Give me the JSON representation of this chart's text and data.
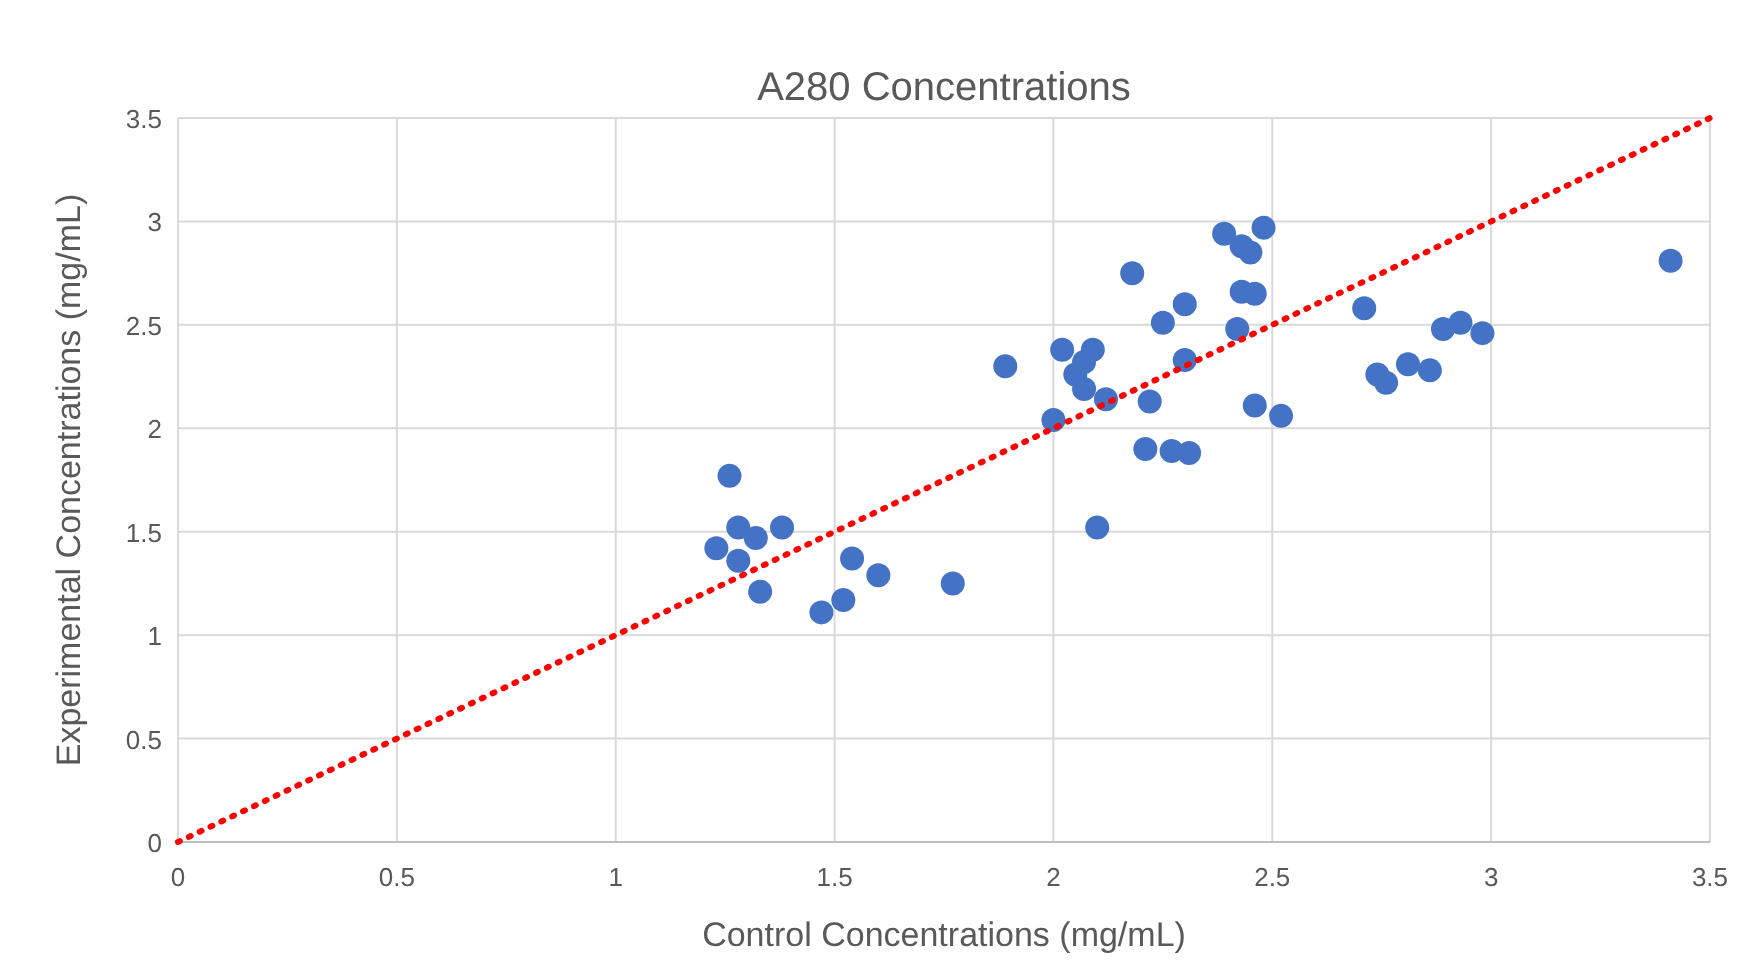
{
  "chart_data": {
    "type": "scatter",
    "title": "A280 Concentrations",
    "xlabel": "Control Concentrations (mg/mL)",
    "ylabel": "Experimental Concentrations (mg/mL)",
    "xlim": [
      0,
      3.5
    ],
    "ylim": [
      0,
      3.5
    ],
    "xticks": [
      0,
      0.5,
      1,
      1.5,
      2,
      2.5,
      3,
      3.5
    ],
    "yticks": [
      0,
      0.5,
      1,
      1.5,
      2,
      2.5,
      3,
      3.5
    ],
    "grid": true,
    "series": [
      {
        "color": "#4472c4",
        "marker": "circle",
        "x": [
          1.26,
          1.28,
          1.32,
          1.38,
          1.23,
          1.28,
          1.33,
          1.54,
          1.6,
          1.77,
          1.47,
          1.52,
          1.89,
          2.0,
          2.02,
          2.09,
          2.07,
          2.05,
          2.07,
          2.12,
          2.1,
          2.18,
          2.25,
          2.3,
          2.3,
          2.22,
          2.21,
          2.27,
          2.31,
          2.39,
          2.48,
          2.43,
          2.45,
          2.43,
          2.46,
          2.42,
          2.46,
          2.52,
          2.71,
          3.41,
          2.89,
          2.93,
          2.98,
          2.81,
          2.86,
          2.74,
          2.76
        ],
        "values": [
          1.77,
          1.52,
          1.47,
          1.52,
          1.42,
          1.36,
          1.21,
          1.37,
          1.29,
          1.25,
          1.11,
          1.17,
          2.3,
          2.04,
          2.38,
          2.38,
          2.32,
          2.26,
          2.19,
          2.14,
          1.52,
          2.75,
          2.51,
          2.6,
          2.33,
          2.13,
          1.9,
          1.89,
          1.88,
          2.94,
          2.97,
          2.88,
          2.85,
          2.66,
          2.65,
          2.48,
          2.11,
          2.06,
          2.58,
          2.81,
          2.48,
          2.51,
          2.46,
          2.31,
          2.28,
          2.26,
          2.22
        ]
      },
      {
        "type": "line",
        "color": "#ff0000",
        "marker": "none",
        "line_style": "dotted",
        "x": [
          0,
          3.5
        ],
        "values": [
          0,
          3.5
        ]
      }
    ]
  }
}
